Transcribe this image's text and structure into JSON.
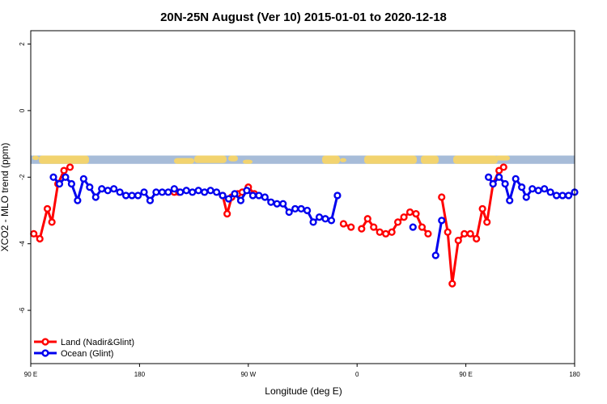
{
  "chart_data": {
    "type": "line",
    "title": "20N-25N August (Ver 10)   2015-01-01 to 2020-12-18",
    "xlabel": "Longitude (deg E)",
    "ylabel": "XCO2 - MLO trend (ppm)",
    "xlim": [
      90,
      450
    ],
    "ylim": [
      -7.6,
      2.4
    ],
    "x_ticks": [
      {
        "value": 90,
        "label": "90 E"
      },
      {
        "value": 162,
        "label": "180"
      },
      {
        "value": 234,
        "label": "90 W"
      },
      {
        "value": 306,
        "label": "0"
      },
      {
        "value": 378,
        "label": "90 E"
      },
      {
        "value": 450,
        "label": "180"
      }
    ],
    "y_ticks": [
      {
        "value": 2,
        "label": "2"
      },
      {
        "value": 0,
        "label": "0"
      },
      {
        "value": -2,
        "label": "-2"
      },
      {
        "value": -4,
        "label": "-4"
      },
      {
        "value": -6,
        "label": "-6"
      }
    ],
    "map_strip": {
      "y_top": -1.35,
      "y_bottom": -1.6,
      "ocean_color": "#a7bcd8",
      "land_color": "#f2d36f"
    },
    "series": [
      {
        "name": "Land (Nadir&Glint)",
        "color": "#ff0000",
        "segments": [
          [
            [
              92,
              -3.7
            ],
            [
              96,
              -3.85
            ],
            [
              101,
              -2.95
            ],
            [
              104,
              -3.35
            ],
            [
              108,
              -2.2
            ],
            [
              112,
              -1.8
            ],
            [
              116,
              -1.7
            ]
          ],
          [
            [
              185,
              -2.45
            ],
            [
              188,
              -2.45
            ]
          ],
          [
            [
              217,
              -2.55
            ],
            [
              220,
              -3.1
            ],
            [
              223,
              -2.6
            ],
            [
              227,
              -2.5
            ]
          ],
          [
            [
              230,
              -2.45
            ],
            [
              234,
              -2.3
            ],
            [
              238,
              -2.5
            ]
          ],
          [
            [
              297,
              -3.4
            ],
            [
              302,
              -3.5
            ]
          ],
          [
            [
              309,
              -3.55
            ],
            [
              313,
              -3.25
            ],
            [
              317,
              -3.5
            ],
            [
              321,
              -3.65
            ],
            [
              325,
              -3.7
            ],
            [
              329,
              -3.65
            ],
            [
              333,
              -3.35
            ],
            [
              337,
              -3.2
            ],
            [
              341,
              -3.05
            ],
            [
              345,
              -3.1
            ],
            [
              349,
              -3.5
            ],
            [
              353,
              -3.7
            ]
          ],
          [
            [
              362,
              -2.6
            ],
            [
              366,
              -3.65
            ],
            [
              369,
              -5.2
            ],
            [
              373,
              -3.9
            ],
            [
              377,
              -3.7
            ],
            [
              381,
              -3.7
            ],
            [
              385,
              -3.85
            ],
            [
              389,
              -2.95
            ],
            [
              392,
              -3.35
            ],
            [
              396,
              -2.2
            ],
            [
              400,
              -1.8
            ],
            [
              403,
              -1.7
            ]
          ]
        ]
      },
      {
        "name": "Ocean (Glint)",
        "color": "#0000ee",
        "segments": [
          [
            [
              105,
              -2.0
            ],
            [
              109,
              -2.2
            ],
            [
              113,
              -2.0
            ],
            [
              117,
              -2.2
            ],
            [
              121,
              -2.7
            ],
            [
              125,
              -2.05
            ],
            [
              129,
              -2.3
            ],
            [
              133,
              -2.6
            ],
            [
              137,
              -2.35
            ],
            [
              141,
              -2.4
            ],
            [
              145,
              -2.35
            ],
            [
              149,
              -2.45
            ],
            [
              153,
              -2.55
            ],
            [
              157,
              -2.55
            ],
            [
              161,
              -2.55
            ],
            [
              165,
              -2.45
            ],
            [
              169,
              -2.7
            ],
            [
              173,
              -2.45
            ],
            [
              177,
              -2.45
            ],
            [
              181,
              -2.45
            ],
            [
              185,
              -2.35
            ],
            [
              189,
              -2.45
            ],
            [
              193,
              -2.4
            ],
            [
              197,
              -2.45
            ],
            [
              201,
              -2.4
            ],
            [
              205,
              -2.45
            ],
            [
              209,
              -2.4
            ],
            [
              213,
              -2.45
            ],
            [
              217,
              -2.55
            ],
            [
              221,
              -2.65
            ],
            [
              225,
              -2.5
            ],
            [
              229,
              -2.7
            ],
            [
              233,
              -2.4
            ],
            [
              237,
              -2.55
            ],
            [
              241,
              -2.55
            ],
            [
              245,
              -2.6
            ],
            [
              249,
              -2.75
            ],
            [
              253,
              -2.8
            ],
            [
              257,
              -2.8
            ],
            [
              261,
              -3.05
            ],
            [
              265,
              -2.95
            ],
            [
              269,
              -2.95
            ],
            [
              273,
              -3.0
            ],
            [
              277,
              -3.35
            ],
            [
              281,
              -3.2
            ],
            [
              285,
              -3.25
            ],
            [
              289,
              -3.3
            ],
            [
              293,
              -2.55
            ]
          ],
          [
            [
              343,
              -3.5
            ]
          ],
          [
            [
              358,
              -4.35
            ],
            [
              362,
              -3.3
            ]
          ],
          [
            [
              393,
              -2.0
            ],
            [
              396,
              -2.2
            ],
            [
              400,
              -2.0
            ],
            [
              404,
              -2.2
            ],
            [
              407,
              -2.7
            ],
            [
              411,
              -2.05
            ],
            [
              415,
              -2.3
            ],
            [
              418,
              -2.6
            ],
            [
              422,
              -2.35
            ],
            [
              426,
              -2.4
            ],
            [
              430,
              -2.35
            ],
            [
              434,
              -2.45
            ],
            [
              438,
              -2.55
            ],
            [
              442,
              -2.55
            ],
            [
              446,
              -2.55
            ],
            [
              450,
              -2.45
            ]
          ]
        ]
      }
    ],
    "legend": {
      "placement": "bottom-left"
    },
    "grid": false
  }
}
